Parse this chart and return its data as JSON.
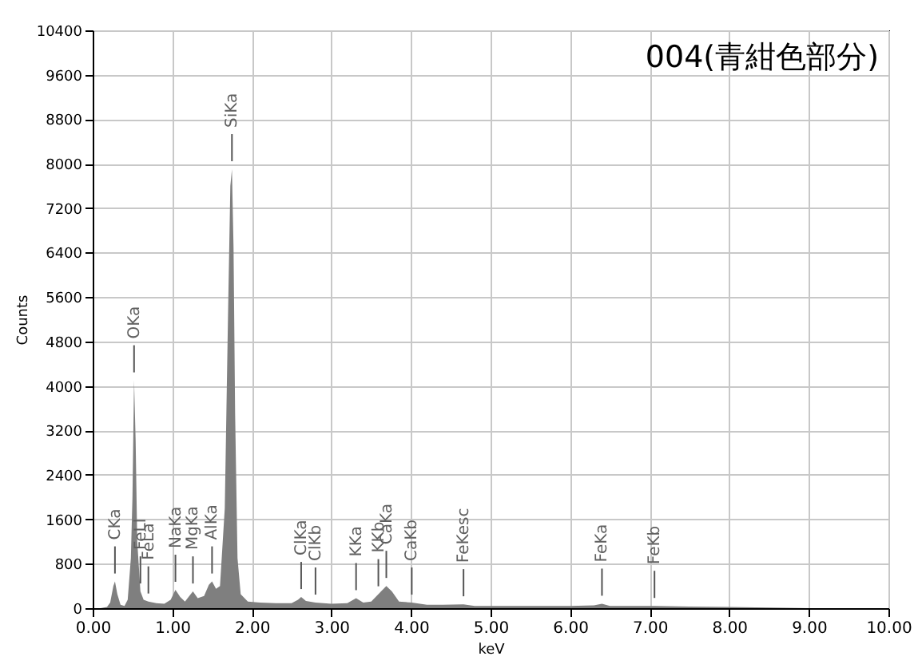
{
  "chart_data": {
    "type": "area",
    "title": "004(青紺色部分)",
    "xlabel": "keV",
    "ylabel": "Counts",
    "series": [
      {
        "color": "#7f7f7f",
        "x": [
          0.1,
          0.18,
          0.22,
          0.26,
          0.28,
          0.31,
          0.35,
          0.4,
          0.44,
          0.48,
          0.5,
          0.52,
          0.54,
          0.56,
          0.6,
          0.64,
          0.7,
          0.8,
          0.9,
          0.98,
          1.04,
          1.1,
          1.16,
          1.22,
          1.26,
          1.32,
          1.4,
          1.46,
          1.5,
          1.55,
          1.6,
          1.66,
          1.7,
          1.73,
          1.75,
          1.77,
          1.79,
          1.82,
          1.86,
          1.95,
          2.1,
          2.3,
          2.5,
          2.58,
          2.62,
          2.68,
          2.8,
          3.0,
          3.2,
          3.31,
          3.4,
          3.5,
          3.59,
          3.69,
          3.76,
          3.85,
          4.01,
          4.2,
          4.4,
          4.66,
          4.8,
          5.0,
          5.5,
          6.0,
          6.3,
          6.4,
          6.5,
          7.06,
          7.5,
          8.0,
          9.0,
          10.0
        ],
        "values": [
          0,
          20,
          100,
          400,
          480,
          250,
          60,
          40,
          150,
          900,
          2000,
          4100,
          3000,
          1200,
          300,
          150,
          120,
          90,
          80,
          150,
          330,
          200,
          120,
          230,
          300,
          180,
          220,
          420,
          480,
          350,
          400,
          1800,
          5200,
          7600,
          7900,
          6500,
          3500,
          900,
          250,
          120,
          100,
          90,
          90,
          150,
          200,
          130,
          100,
          80,
          90,
          180,
          100,
          120,
          250,
          400,
          300,
          120,
          100,
          60,
          60,
          70,
          40,
          40,
          40,
          40,
          50,
          80,
          40,
          40,
          30,
          20,
          0,
          0
        ]
      }
    ],
    "xlim": [
      0,
      10
    ],
    "ylim": [
      0,
      10400
    ],
    "xticks": [
      {
        "value": 0,
        "label": "0.00"
      },
      {
        "value": 1,
        "label": "1.00"
      },
      {
        "value": 2,
        "label": "2.00"
      },
      {
        "value": 3,
        "label": "3.00"
      },
      {
        "value": 4,
        "label": "4.00"
      },
      {
        "value": 5,
        "label": "5.00"
      },
      {
        "value": 6,
        "label": "6.00"
      },
      {
        "value": 7,
        "label": "7.00"
      },
      {
        "value": 8,
        "label": "8.00"
      },
      {
        "value": 9,
        "label": "9.00"
      },
      {
        "value": 10,
        "label": "10.00"
      }
    ],
    "yticks": [
      0,
      800,
      1600,
      2400,
      3200,
      4000,
      4800,
      5600,
      6400,
      7200,
      8000,
      8800,
      9600,
      10400
    ],
    "grid": true,
    "annotations": [
      {
        "text": "CKa",
        "x": 0.28,
        "y": 480
      },
      {
        "text": "OKa",
        "x": 0.52,
        "y": 4100
      },
      {
        "text": "FeLl",
        "x": 0.6,
        "y": 300
      },
      {
        "text": "FeLa",
        "x": 0.7,
        "y": 120
      },
      {
        "text": "NaKa",
        "x": 1.04,
        "y": 330
      },
      {
        "text": "MgKa",
        "x": 1.26,
        "y": 300
      },
      {
        "text": "AlKa",
        "x": 1.5,
        "y": 480
      },
      {
        "text": "SiKa",
        "x": 1.75,
        "y": 7900
      },
      {
        "text": "ClKa",
        "x": 2.62,
        "y": 200
      },
      {
        "text": "ClKb",
        "x": 2.8,
        "y": 100
      },
      {
        "text": "KKa",
        "x": 3.31,
        "y": 180
      },
      {
        "text": "KKb",
        "x": 3.59,
        "y": 250
      },
      {
        "text": "CaKa",
        "x": 3.69,
        "y": 400
      },
      {
        "text": "CaKb",
        "x": 4.01,
        "y": 100
      },
      {
        "text": "FeKesc",
        "x": 4.66,
        "y": 70
      },
      {
        "text": "FeKa",
        "x": 6.4,
        "y": 80
      },
      {
        "text": "FeKb",
        "x": 7.06,
        "y": 40
      }
    ]
  }
}
